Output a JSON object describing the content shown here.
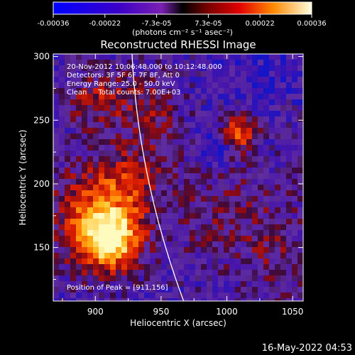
{
  "chart_data": {
    "type": "heatmap",
    "title": "Reconstructed RHESSI Image",
    "xlabel": "Heliocentric X (arcsec)",
    "ylabel": "Heliocentric Y (arcsec)",
    "xlim": [
      868,
      1058
    ],
    "ylim": [
      108,
      302
    ],
    "x_ticks": [
      "900",
      "950",
      "1000",
      "1050"
    ],
    "y_ticks": [
      "150",
      "200",
      "250",
      "300"
    ],
    "colorbar": {
      "ticks": [
        "-0.00036",
        "-0.00022",
        "-7.3e-05",
        "7.3e-05",
        "0.00022",
        "0.00036"
      ],
      "unit_label": "(photons cm⁻² s⁻¹ asec⁻²)",
      "range": [
        -0.00036,
        0.00036
      ]
    },
    "annotations": [
      "20-Nov-2012 10:06:48.000 to 10:12:48.000",
      "Detectors: 3F 5F 6F 7F 8F, Att 0",
      "Energy Range: 25.0 - 50.0 keV",
      "Clean     Total counts: 7.00E+03"
    ],
    "peak_label": "Position of Peak = [911,156]",
    "peak": [
      911,
      156
    ]
  },
  "footer_timestamp": "16-May-2022 04:53"
}
